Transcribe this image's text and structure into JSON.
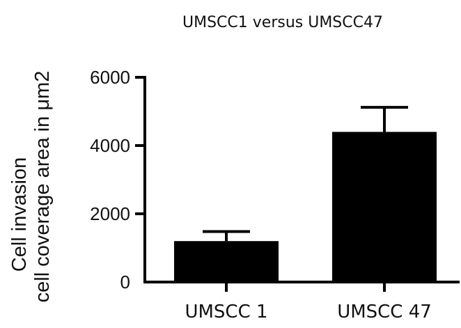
{
  "chart_data": {
    "type": "bar",
    "title": "UMSCC1 versus UMSCC47",
    "ylabel_lines": [
      "Cell invasion",
      "cell coverage area in μm2"
    ],
    "xlabel": "",
    "categories": [
      "UMSCC 1",
      "UMSCC 47"
    ],
    "values": [
      1200,
      4400
    ],
    "error_upper": [
      1480,
      5120
    ],
    "yticks": [
      "0",
      "2000",
      "4000",
      "6000"
    ],
    "ytick_values": [
      0,
      2000,
      4000,
      6000
    ],
    "ylim": [
      0,
      6000
    ],
    "grid": false,
    "legend": "none",
    "bar_color": "#000000"
  }
}
